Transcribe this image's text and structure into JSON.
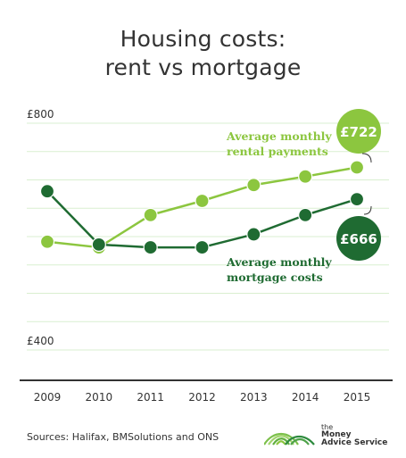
{
  "title_lines": [
    "Housing costs:",
    "rent vs mortgage"
  ],
  "footer": {
    "source": "Sources: Halifax, BMSolutions and ONS",
    "brand_lines": [
      "the",
      "Money",
      "Advice Service"
    ]
  },
  "colors": {
    "rent": "#8CC63F",
    "mortgage": "#1F6B32",
    "grid": "#D9EFD0",
    "axis": "#333333",
    "text": "#333333"
  },
  "chart_data": {
    "type": "line",
    "title": "Housing costs: rent vs mortgage",
    "categories": [
      "2009",
      "2010",
      "2011",
      "2012",
      "2013",
      "2014",
      "2015"
    ],
    "ylim": [
      400,
      800
    ],
    "y_tick_labels": [
      "£800",
      "£400"
    ],
    "grid": true,
    "series": [
      {
        "name": "Average monthly rental payments",
        "label_lines": [
          "Average monthly",
          "rental payments"
        ],
        "color": "#8CC63F",
        "values": [
          591,
          581,
          638,
          663,
          691,
          706,
          722
        ],
        "badge": "£722"
      },
      {
        "name": "Average monthly mortgage costs",
        "label_lines": [
          "Average monthly",
          "mortgage costs"
        ],
        "color": "#1F6B32",
        "values": [
          680,
          586,
          581,
          581,
          604,
          638,
          666
        ],
        "badge": "£666"
      }
    ]
  }
}
